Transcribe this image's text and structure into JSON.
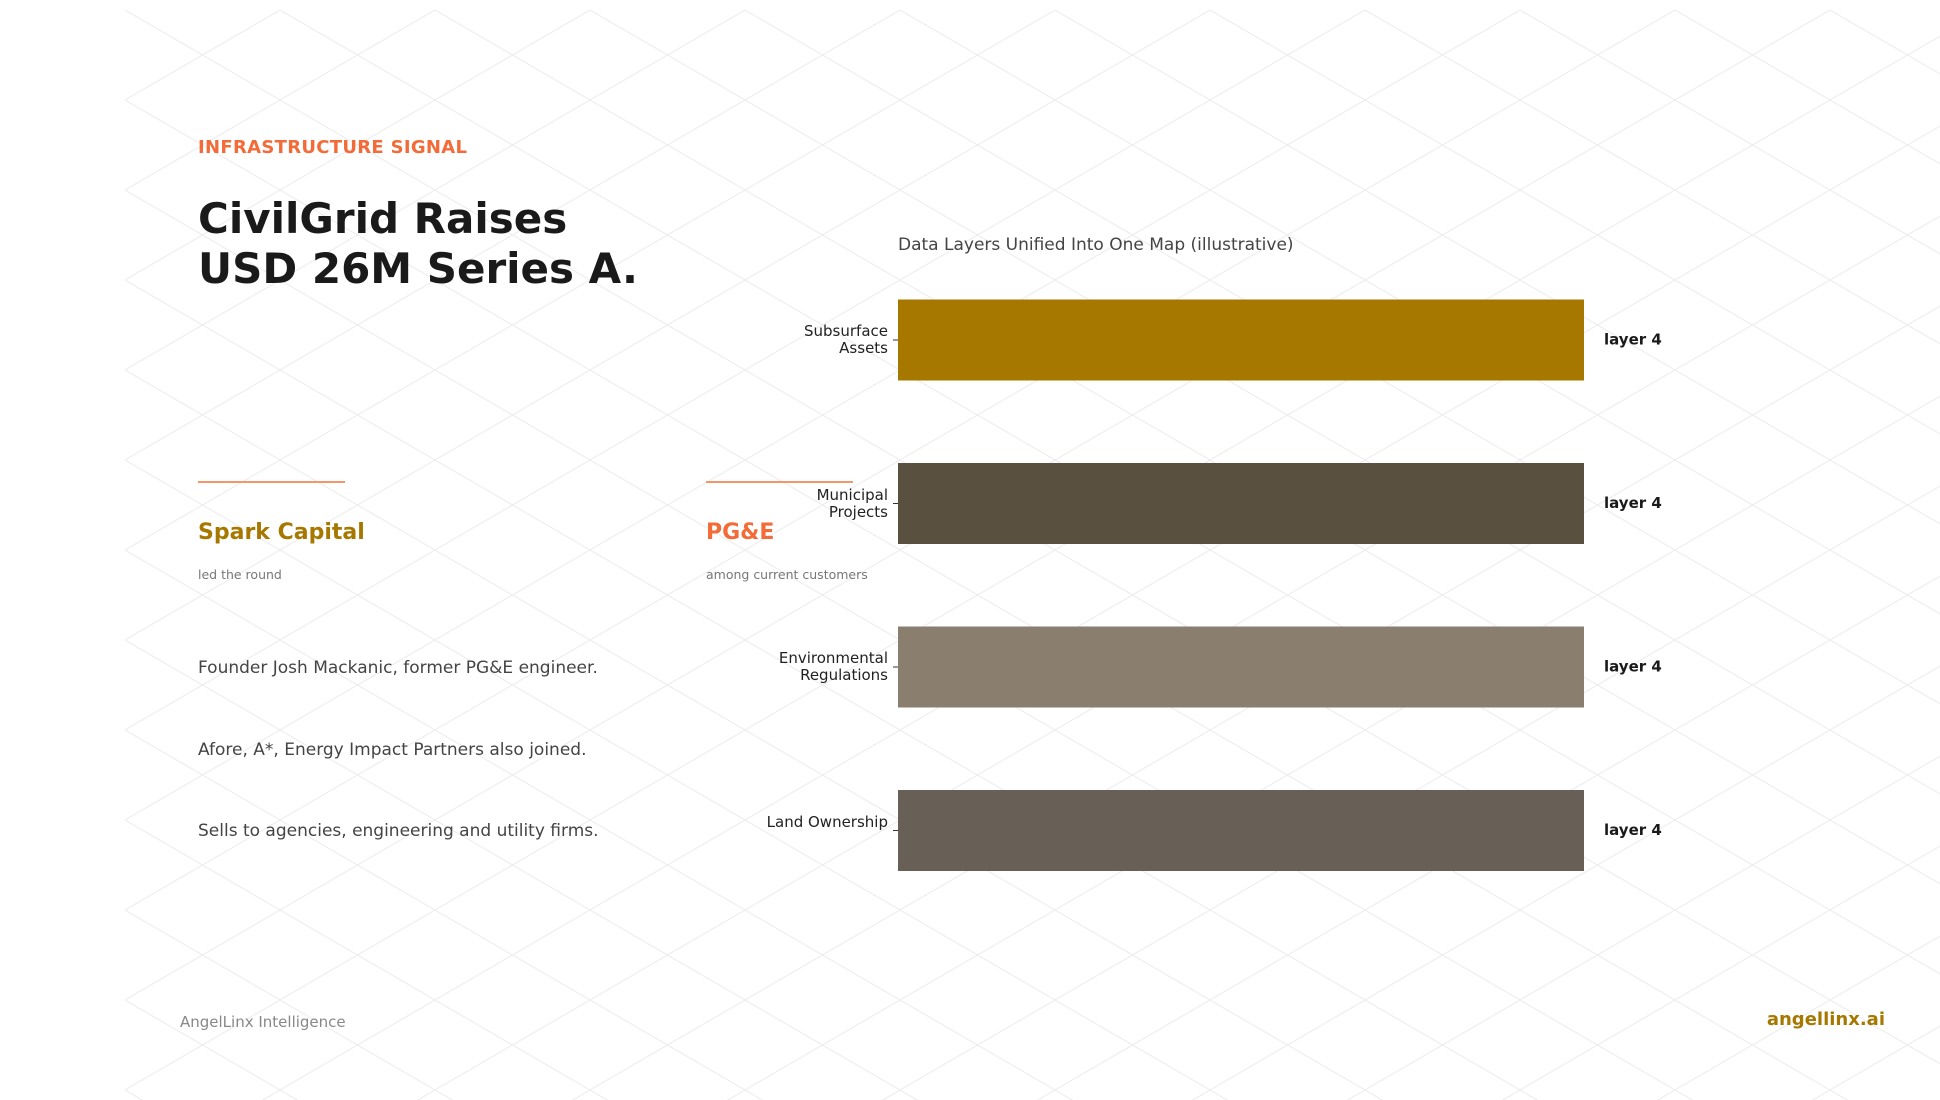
{
  "header": {
    "kicker": "INFRASTRUCTURE SIGNAL",
    "title_lines": [
      "CivilGrid Raises",
      "USD 26M Series A."
    ]
  },
  "stats": [
    {
      "value": "Spark Capital",
      "caption": "led the round"
    },
    {
      "value": "PG&E",
      "caption": "among current customers"
    }
  ],
  "bullets": [
    "Founder Josh Mackanic, former PG&E engineer.",
    "Afore, A*, Energy Impact Partners also joined.",
    "Sells to agencies, engineering and utility firms."
  ],
  "footer": {
    "source": "AngelLinx Intelligence",
    "brand": "angellinx.ai"
  },
  "chart_data": {
    "type": "barh",
    "title": "Data Layers Unified Into One Map (illustrative)",
    "categories": [
      "Subsurface Assets",
      "Municipal Projects",
      "Environmental Regulations",
      "Land Ownership"
    ],
    "values": [
      4,
      4,
      4,
      4
    ],
    "value_labels": [
      "layer 4",
      "layer 4",
      "layer 4",
      "layer 4"
    ],
    "colors": [
      "#a67800",
      "#5a5040",
      "#8a7f6e",
      "#685f57"
    ],
    "xlim": [
      0,
      4
    ]
  }
}
